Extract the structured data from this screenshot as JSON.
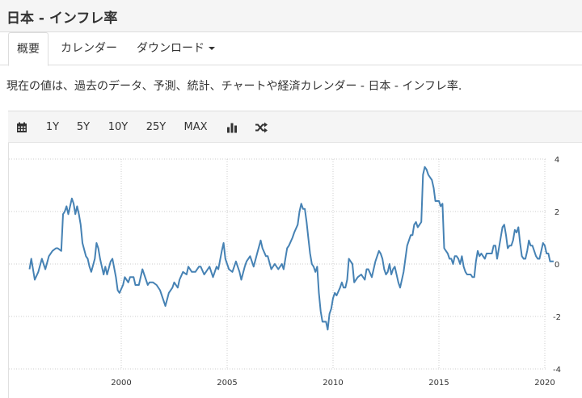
{
  "page_title": "日本 - インフレ率",
  "tabs": [
    {
      "label": "概要",
      "active": true
    },
    {
      "label": "カレンダー",
      "active": false
    },
    {
      "label": "ダウンロード",
      "active": false
    }
  ],
  "description": "現在の値は、過去のデータ、予測、統計、チャートや経済カレンダー - 日本 - インフレ率.",
  "toolbar": {
    "calendar_icon": "calendar-icon",
    "ranges": [
      "1Y",
      "5Y",
      "10Y",
      "25Y",
      "MAX"
    ],
    "bar_chart_icon": "bar-chart-icon",
    "shuffle_icon": "shuffle-icon"
  },
  "colors": {
    "line": "#4682b4",
    "grid": "#cccccc"
  },
  "chart_data": {
    "type": "line",
    "title": "",
    "xlabel": "",
    "ylabel": "",
    "x_ticks": [
      "2000",
      "2005",
      "2010",
      "2015",
      "2020"
    ],
    "y_ticks": [
      "4",
      "2",
      "0",
      "-2",
      "-4"
    ],
    "ylim": [
      -4,
      4
    ],
    "xlim": [
      "1995-08",
      "2020-08"
    ],
    "grid": true,
    "y_axis_position": "right",
    "series": [
      {
        "name": "",
        "points": [
          [
            "1995-09",
            -0.2
          ],
          [
            "1995-10",
            0.2
          ],
          [
            "1995-12",
            -0.6
          ],
          [
            "1996-02",
            -0.3
          ],
          [
            "1996-04",
            0.2
          ],
          [
            "1996-06",
            -0.2
          ],
          [
            "1996-08",
            0.3
          ],
          [
            "1996-10",
            0.5
          ],
          [
            "1996-12",
            0.6
          ],
          [
            "1997-01",
            0.6
          ],
          [
            "1997-03",
            0.5
          ],
          [
            "1997-04",
            1.9
          ],
          [
            "1997-05",
            2.0
          ],
          [
            "1997-06",
            2.2
          ],
          [
            "1997-07",
            1.9
          ],
          [
            "1997-09",
            2.5
          ],
          [
            "1997-10",
            2.3
          ],
          [
            "1997-11",
            1.9
          ],
          [
            "1997-12",
            2.2
          ],
          [
            "1998-01",
            1.9
          ],
          [
            "1998-02",
            1.5
          ],
          [
            "1998-03",
            0.8
          ],
          [
            "1998-05",
            0.3
          ],
          [
            "1998-06",
            0.2
          ],
          [
            "1998-07",
            -0.1
          ],
          [
            "1998-08",
            -0.3
          ],
          [
            "1998-10",
            0.2
          ],
          [
            "1998-11",
            0.8
          ],
          [
            "1998-12",
            0.6
          ],
          [
            "1999-01",
            0.2
          ],
          [
            "1999-02",
            -0.1
          ],
          [
            "1999-03",
            -0.4
          ],
          [
            "1999-04",
            -0.1
          ],
          [
            "1999-05",
            -0.4
          ],
          [
            "1999-07",
            0.1
          ],
          [
            "1999-08",
            0.2
          ],
          [
            "1999-10",
            -0.5
          ],
          [
            "1999-11",
            -1.0
          ],
          [
            "1999-12",
            -1.1
          ],
          [
            "2000-02",
            -0.8
          ],
          [
            "2000-03",
            -0.5
          ],
          [
            "2000-05",
            -0.7
          ],
          [
            "2000-06",
            -0.5
          ],
          [
            "2000-08",
            -0.5
          ],
          [
            "2000-09",
            -0.8
          ],
          [
            "2000-11",
            -0.8
          ],
          [
            "2001-01",
            -0.2
          ],
          [
            "2001-02",
            -0.4
          ],
          [
            "2001-04",
            -0.8
          ],
          [
            "2001-05",
            -0.7
          ],
          [
            "2001-07",
            -0.7
          ],
          [
            "2001-09",
            -0.8
          ],
          [
            "2001-11",
            -1.0
          ],
          [
            "2002-01",
            -1.4
          ],
          [
            "2002-02",
            -1.6
          ],
          [
            "2002-04",
            -1.1
          ],
          [
            "2002-06",
            -0.9
          ],
          [
            "2002-07",
            -0.7
          ],
          [
            "2002-09",
            -0.9
          ],
          [
            "2002-10",
            -0.6
          ],
          [
            "2002-12",
            -0.3
          ],
          [
            "2003-02",
            -0.4
          ],
          [
            "2003-03",
            -0.1
          ],
          [
            "2003-05",
            -0.3
          ],
          [
            "2003-07",
            -0.3
          ],
          [
            "2003-09",
            -0.1
          ],
          [
            "2003-10",
            -0.1
          ],
          [
            "2003-12",
            -0.4
          ],
          [
            "2004-01",
            -0.3
          ],
          [
            "2004-03",
            -0.1
          ],
          [
            "2004-05",
            -0.5
          ],
          [
            "2004-07",
            -0.1
          ],
          [
            "2004-08",
            -0.2
          ],
          [
            "2004-10",
            0.5
          ],
          [
            "2004-11",
            0.8
          ],
          [
            "2004-12",
            0.2
          ],
          [
            "2005-02",
            -0.2
          ],
          [
            "2005-04",
            -0.3
          ],
          [
            "2005-06",
            0.1
          ],
          [
            "2005-08",
            -0.3
          ],
          [
            "2005-09",
            -0.6
          ],
          [
            "2005-11",
            -0.1
          ],
          [
            "2005-12",
            0.1
          ],
          [
            "2006-02",
            0.3
          ],
          [
            "2006-04",
            -0.1
          ],
          [
            "2006-06",
            0.4
          ],
          [
            "2006-08",
            0.9
          ],
          [
            "2006-09",
            0.6
          ],
          [
            "2006-11",
            0.3
          ],
          [
            "2006-12",
            0.3
          ],
          [
            "2007-02",
            -0.2
          ],
          [
            "2007-04",
            0.0
          ],
          [
            "2007-06",
            -0.2
          ],
          [
            "2007-08",
            0.0
          ],
          [
            "2007-09",
            -0.2
          ],
          [
            "2007-11",
            0.6
          ],
          [
            "2007-12",
            0.7
          ],
          [
            "2008-02",
            1.0
          ],
          [
            "2008-03",
            1.2
          ],
          [
            "2008-05",
            1.5
          ],
          [
            "2008-06",
            2.0
          ],
          [
            "2008-07",
            2.3
          ],
          [
            "2008-08",
            2.1
          ],
          [
            "2008-09",
            2.1
          ],
          [
            "2008-10",
            1.6
          ],
          [
            "2008-11",
            1.0
          ],
          [
            "2008-12",
            0.4
          ],
          [
            "2009-01",
            0.0
          ],
          [
            "2009-02",
            -0.1
          ],
          [
            "2009-03",
            -0.3
          ],
          [
            "2009-04",
            -0.1
          ],
          [
            "2009-05",
            -1.1
          ],
          [
            "2009-06",
            -1.8
          ],
          [
            "2009-07",
            -2.2
          ],
          [
            "2009-08",
            -2.2
          ],
          [
            "2009-09",
            -2.2
          ],
          [
            "2009-10",
            -2.5
          ],
          [
            "2009-11",
            -1.9
          ],
          [
            "2009-12",
            -1.7
          ],
          [
            "2010-01",
            -1.3
          ],
          [
            "2010-02",
            -1.1
          ],
          [
            "2010-03",
            -1.2
          ],
          [
            "2010-05",
            -0.9
          ],
          [
            "2010-06",
            -0.7
          ],
          [
            "2010-07",
            -0.9
          ],
          [
            "2010-08",
            -0.9
          ],
          [
            "2010-09",
            -0.6
          ],
          [
            "2010-10",
            0.2
          ],
          [
            "2010-11",
            0.1
          ],
          [
            "2010-12",
            0.0
          ],
          [
            "2011-01",
            -0.7
          ],
          [
            "2011-03",
            -0.5
          ],
          [
            "2011-05",
            -0.4
          ],
          [
            "2011-07",
            -0.6
          ],
          [
            "2011-08",
            -0.2
          ],
          [
            "2011-09",
            -0.2
          ],
          [
            "2011-11",
            -0.5
          ],
          [
            "2012-01",
            0.1
          ],
          [
            "2012-02",
            0.3
          ],
          [
            "2012-03",
            0.5
          ],
          [
            "2012-04",
            0.4
          ],
          [
            "2012-05",
            0.2
          ],
          [
            "2012-06",
            -0.2
          ],
          [
            "2012-07",
            -0.4
          ],
          [
            "2012-08",
            -0.3
          ],
          [
            "2012-09",
            0.0
          ],
          [
            "2012-10",
            -0.4
          ],
          [
            "2012-11",
            -0.2
          ],
          [
            "2012-12",
            -0.1
          ],
          [
            "2013-02",
            -0.7
          ],
          [
            "2013-03",
            -0.9
          ],
          [
            "2013-05",
            -0.3
          ],
          [
            "2013-06",
            0.2
          ],
          [
            "2013-07",
            0.7
          ],
          [
            "2013-08",
            0.9
          ],
          [
            "2013-09",
            1.1
          ],
          [
            "2013-10",
            1.1
          ],
          [
            "2013-11",
            1.5
          ],
          [
            "2013-12",
            1.6
          ],
          [
            "2014-01",
            1.4
          ],
          [
            "2014-02",
            1.5
          ],
          [
            "2014-03",
            1.6
          ],
          [
            "2014-04",
            3.4
          ],
          [
            "2014-05",
            3.7
          ],
          [
            "2014-06",
            3.6
          ],
          [
            "2014-07",
            3.4
          ],
          [
            "2014-08",
            3.3
          ],
          [
            "2014-09",
            3.2
          ],
          [
            "2014-10",
            2.9
          ],
          [
            "2014-11",
            2.4
          ],
          [
            "2014-12",
            2.4
          ],
          [
            "2015-01",
            2.4
          ],
          [
            "2015-02",
            2.2
          ],
          [
            "2015-03",
            2.3
          ],
          [
            "2015-04",
            0.6
          ],
          [
            "2015-05",
            0.5
          ],
          [
            "2015-06",
            0.4
          ],
          [
            "2015-07",
            0.2
          ],
          [
            "2015-08",
            0.2
          ],
          [
            "2015-09",
            0.0
          ],
          [
            "2015-10",
            0.3
          ],
          [
            "2015-11",
            0.3
          ],
          [
            "2015-12",
            0.2
          ],
          [
            "2016-01",
            0.0
          ],
          [
            "2016-02",
            0.3
          ],
          [
            "2016-03",
            -0.1
          ],
          [
            "2016-04",
            -0.3
          ],
          [
            "2016-05",
            -0.4
          ],
          [
            "2016-06",
            -0.4
          ],
          [
            "2016-07",
            -0.4
          ],
          [
            "2016-08",
            -0.5
          ],
          [
            "2016-09",
            -0.5
          ],
          [
            "2016-10",
            0.1
          ],
          [
            "2016-11",
            0.5
          ],
          [
            "2016-12",
            0.3
          ],
          [
            "2017-01",
            0.4
          ],
          [
            "2017-02",
            0.3
          ],
          [
            "2017-03",
            0.2
          ],
          [
            "2017-04",
            0.4
          ],
          [
            "2017-05",
            0.4
          ],
          [
            "2017-06",
            0.4
          ],
          [
            "2017-07",
            0.4
          ],
          [
            "2017-08",
            0.7
          ],
          [
            "2017-09",
            0.7
          ],
          [
            "2017-10",
            0.2
          ],
          [
            "2017-11",
            0.6
          ],
          [
            "2017-12",
            1.0
          ],
          [
            "2018-01",
            1.4
          ],
          [
            "2018-02",
            1.5
          ],
          [
            "2018-03",
            1.1
          ],
          [
            "2018-04",
            0.6
          ],
          [
            "2018-05",
            0.7
          ],
          [
            "2018-06",
            0.7
          ],
          [
            "2018-07",
            0.9
          ],
          [
            "2018-08",
            1.3
          ],
          [
            "2018-09",
            1.2
          ],
          [
            "2018-10",
            1.4
          ],
          [
            "2018-11",
            0.8
          ],
          [
            "2018-12",
            0.3
          ],
          [
            "2019-01",
            0.2
          ],
          [
            "2019-02",
            0.2
          ],
          [
            "2019-03",
            0.5
          ],
          [
            "2019-04",
            0.9
          ],
          [
            "2019-05",
            0.7
          ],
          [
            "2019-06",
            0.7
          ],
          [
            "2019-07",
            0.5
          ],
          [
            "2019-08",
            0.3
          ],
          [
            "2019-09",
            0.2
          ],
          [
            "2019-10",
            0.2
          ],
          [
            "2019-11",
            0.5
          ],
          [
            "2019-12",
            0.8
          ],
          [
            "2020-01",
            0.7
          ],
          [
            "2020-02",
            0.4
          ],
          [
            "2020-03",
            0.4
          ],
          [
            "2020-04",
            0.1
          ],
          [
            "2020-05",
            0.1
          ],
          [
            "2020-06",
            0.1
          ]
        ]
      }
    ]
  }
}
